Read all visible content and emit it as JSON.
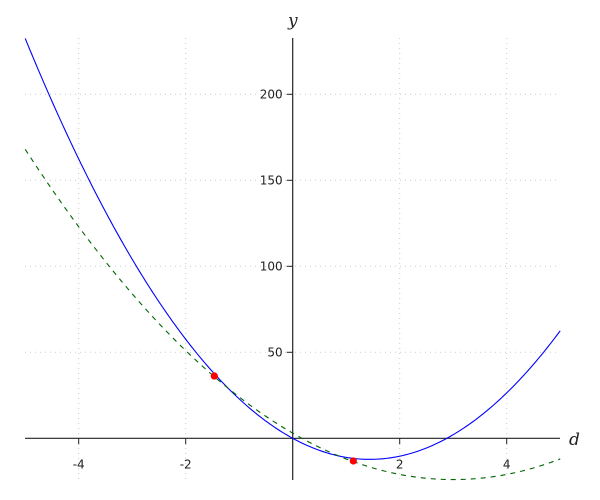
{
  "chart_data": {
    "type": "line",
    "title": "",
    "xlabel": "d",
    "ylabel": "y",
    "xlim": [
      -5,
      5
    ],
    "ylim": [
      -24,
      232
    ],
    "grid": true,
    "x_ticks": [
      -4,
      -2,
      2,
      4
    ],
    "y_ticks": [
      50,
      100,
      150,
      200
    ],
    "x_tick_labels": [
      "-4",
      "-2",
      "2",
      "4"
    ],
    "y_tick_labels": [
      "50",
      "100",
      "150",
      "200"
    ],
    "series": [
      {
        "style": "solid",
        "color": "#0000ff",
        "form": "quadratic",
        "coefficients": {
          "a": 5.9,
          "b": -17,
          "c": 0
        },
        "points": [
          [
            -5,
            232.5
          ],
          [
            -4,
            162.4
          ],
          [
            -2,
            57.6
          ],
          [
            0,
            0
          ],
          [
            1.44,
            -12.2
          ],
          [
            2.88,
            0
          ],
          [
            4,
            26.4
          ],
          [
            5,
            62.5
          ]
        ]
      },
      {
        "style": "dashed",
        "color": "#006400",
        "form": "quadratic",
        "coefficients": {
          "a": 3,
          "b": -18,
          "c": 3
        },
        "points": [
          [
            -5,
            168
          ],
          [
            -4,
            123
          ],
          [
            -2,
            51
          ],
          [
            0,
            3
          ],
          [
            2,
            -21
          ],
          [
            3,
            -24
          ],
          [
            4,
            -21
          ],
          [
            5,
            -12
          ]
        ]
      }
    ],
    "markers": [
      {
        "x": -1.465,
        "y": 36.2,
        "color": "#ff0000"
      },
      {
        "x": 1.133,
        "y": -13.2,
        "color": "#ff0000"
      }
    ]
  }
}
